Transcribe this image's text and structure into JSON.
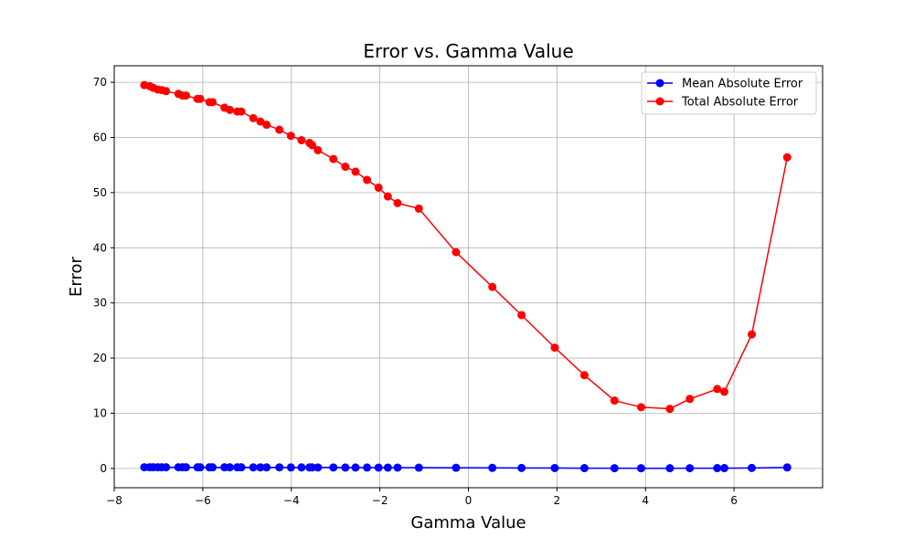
{
  "chart_data": {
    "type": "line",
    "title": "Error vs. Gamma Value",
    "xlabel": "Gamma Value",
    "ylabel": "Error",
    "xlim": [
      -8,
      8
    ],
    "ylim": [
      -3.5,
      73
    ],
    "xticks": [
      -8,
      -6,
      -4,
      -2,
      0,
      2,
      4,
      6
    ],
    "xtick_labels": [
      "−8",
      "−6",
      "−4",
      "−2",
      "0",
      "2",
      "4",
      "6"
    ],
    "yticks": [
      0,
      10,
      20,
      30,
      40,
      50,
      60,
      70
    ],
    "ytick_labels": [
      "0",
      "10",
      "20",
      "30",
      "40",
      "50",
      "60",
      "70"
    ],
    "grid": true,
    "legend_position": "top-right",
    "series": [
      {
        "name": "Mean Absolute Error",
        "color": "#0000ff",
        "marker": "circle",
        "points": [
          [
            -7.32,
            0.21
          ],
          [
            -7.2,
            0.21
          ],
          [
            -7.12,
            0.21
          ],
          [
            -7.02,
            0.21
          ],
          [
            -6.93,
            0.21
          ],
          [
            -6.83,
            0.21
          ],
          [
            -6.55,
            0.21
          ],
          [
            -6.46,
            0.21
          ],
          [
            -6.38,
            0.21
          ],
          [
            -6.12,
            0.2
          ],
          [
            -6.06,
            0.2
          ],
          [
            -5.85,
            0.2
          ],
          [
            -5.78,
            0.2
          ],
          [
            -5.51,
            0.2
          ],
          [
            -5.39,
            0.2
          ],
          [
            -5.22,
            0.2
          ],
          [
            -5.13,
            0.2
          ],
          [
            -4.86,
            0.19
          ],
          [
            -4.7,
            0.19
          ],
          [
            -4.56,
            0.19
          ],
          [
            -4.27,
            0.19
          ],
          [
            -4.01,
            0.18
          ],
          [
            -3.77,
            0.18
          ],
          [
            -3.59,
            0.18
          ],
          [
            -3.53,
            0.18
          ],
          [
            -3.4,
            0.17
          ],
          [
            -3.05,
            0.17
          ],
          [
            -2.78,
            0.16
          ],
          [
            -2.55,
            0.16
          ],
          [
            -2.29,
            0.16
          ],
          [
            -2.03,
            0.15
          ],
          [
            -1.82,
            0.15
          ],
          [
            -1.6,
            0.15
          ],
          [
            -1.12,
            0.14
          ],
          [
            -0.28,
            0.12
          ],
          [
            0.54,
            0.1
          ],
          [
            1.2,
            0.08
          ],
          [
            1.95,
            0.07
          ],
          [
            2.62,
            0.05
          ],
          [
            3.3,
            0.04
          ],
          [
            3.9,
            0.03
          ],
          [
            4.55,
            0.03
          ],
          [
            5.0,
            0.04
          ],
          [
            5.62,
            0.05
          ],
          [
            5.78,
            0.05
          ],
          [
            6.4,
            0.08
          ],
          [
            7.2,
            0.18
          ]
        ]
      },
      {
        "name": "Total Absolute Error",
        "color": "#ff0000",
        "marker": "circle",
        "points": [
          [
            -7.32,
            69.5
          ],
          [
            -7.2,
            69.3
          ],
          [
            -7.12,
            69.0
          ],
          [
            -7.02,
            68.7
          ],
          [
            -6.93,
            68.6
          ],
          [
            -6.83,
            68.4
          ],
          [
            -6.55,
            67.9
          ],
          [
            -6.46,
            67.6
          ],
          [
            -6.38,
            67.6
          ],
          [
            -6.12,
            67.0
          ],
          [
            -6.06,
            67.0
          ],
          [
            -5.85,
            66.4
          ],
          [
            -5.78,
            66.4
          ],
          [
            -5.51,
            65.4
          ],
          [
            -5.39,
            65.0
          ],
          [
            -5.22,
            64.7
          ],
          [
            -5.13,
            64.7
          ],
          [
            -4.86,
            63.5
          ],
          [
            -4.7,
            62.9
          ],
          [
            -4.56,
            62.3
          ],
          [
            -4.27,
            61.4
          ],
          [
            -4.01,
            60.3
          ],
          [
            -3.77,
            59.5
          ],
          [
            -3.59,
            59.0
          ],
          [
            -3.53,
            58.6
          ],
          [
            -3.4,
            57.7
          ],
          [
            -3.05,
            56.1
          ],
          [
            -2.78,
            54.7
          ],
          [
            -2.55,
            53.8
          ],
          [
            -2.29,
            52.3
          ],
          [
            -2.03,
            50.9
          ],
          [
            -1.82,
            49.3
          ],
          [
            -1.6,
            48.1
          ],
          [
            -1.12,
            47.1
          ],
          [
            -0.28,
            39.2
          ],
          [
            0.54,
            32.9
          ],
          [
            1.2,
            27.8
          ],
          [
            1.95,
            21.9
          ],
          [
            2.62,
            16.9
          ],
          [
            3.3,
            12.3
          ],
          [
            3.9,
            11.1
          ],
          [
            4.55,
            10.8
          ],
          [
            5.0,
            12.6
          ],
          [
            5.62,
            14.4
          ],
          [
            5.78,
            13.9
          ],
          [
            6.4,
            24.3
          ],
          [
            7.2,
            56.4
          ]
        ]
      }
    ]
  }
}
